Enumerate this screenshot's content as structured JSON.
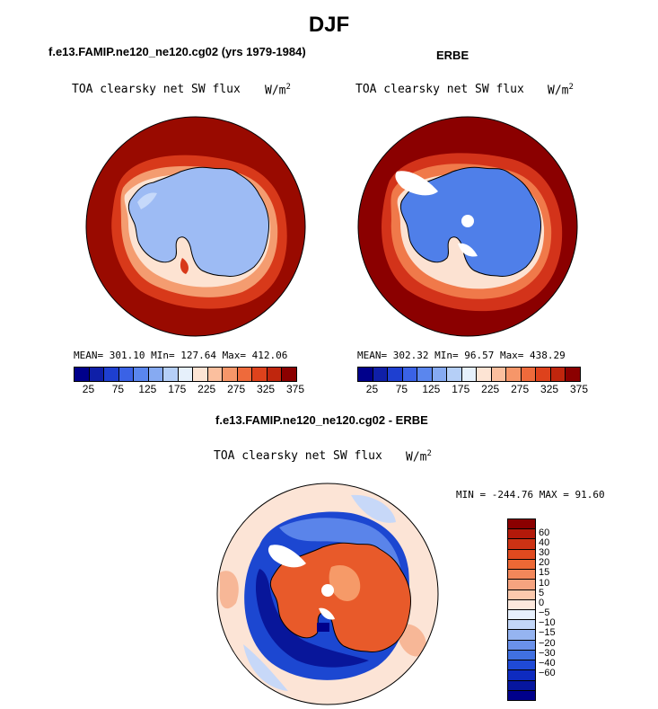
{
  "figure": {
    "title": "DJF"
  },
  "panel_model": {
    "subtitle": "f.e13.FAMIP.ne120_ne120.cg02 (yrs 1979-1984)",
    "field": "TOA clearsky net SW flux",
    "units": "W/m",
    "units_exp": "2",
    "stats": "MEAN= 301.10  MIn= 127.64  Max= 412.06"
  },
  "panel_obs": {
    "subtitle": "ERBE",
    "field": "TOA clearsky net SW flux",
    "units": "W/m",
    "units_exp": "2",
    "stats": "MEAN= 302.32  MIn=  96.57  Max= 438.29"
  },
  "panel_diff": {
    "subtitle": "f.e13.FAMIP.ne120_ne120.cg02 - ERBE",
    "field": "TOA clearsky net SW flux",
    "units": "W/m",
    "units_exp": "2",
    "stats": "MIN = -244.76 MAX =  91.60"
  },
  "colorbar_abs": {
    "colors": [
      "#00008b",
      "#0f1fa8",
      "#1e3fd0",
      "#3a62e6",
      "#5a86ee",
      "#86aaf2",
      "#b5cff7",
      "#e6f0fb",
      "#fde4d4",
      "#fbbf9e",
      "#f69669",
      "#ee6a3b",
      "#de421c",
      "#c0260d",
      "#8b0000"
    ],
    "ticks": [
      "25",
      "75",
      "125",
      "175",
      "225",
      "275",
      "325",
      "375"
    ]
  },
  "colorbar_diff": {
    "colors": [
      "#8b0000",
      "#b2190a",
      "#cc3214",
      "#e04a1f",
      "#ed6835",
      "#f3875a",
      "#f6a37f",
      "#fbc9ad",
      "#fde8dc",
      "#e7f0fd",
      "#c2d6f8",
      "#95b4f1",
      "#6a91ea",
      "#4070e1",
      "#1f4ad6",
      "#0e2bc0",
      "#06169f",
      "#00008b"
    ],
    "labels": [
      "60",
      "40",
      "30",
      "20",
      "15",
      "10",
      "5",
      "0",
      "−5",
      "−10",
      "−15",
      "−20",
      "−30",
      "−40",
      "−60"
    ]
  },
  "chart_data": {
    "type": "map",
    "projection": "south-polar-stereographic",
    "season": "DJF",
    "variable": "TOA clearsky net SW flux",
    "units": "W/m2",
    "panels": [
      {
        "name": "f.e13.FAMIP.ne120_ne120.cg02 (yrs 1979-1984)",
        "mean": 301.1,
        "min": 127.64,
        "max": 412.06,
        "levels": [
          25,
          50,
          75,
          100,
          125,
          150,
          175,
          200,
          225,
          250,
          275,
          300,
          325,
          350,
          375
        ]
      },
      {
        "name": "ERBE",
        "mean": 302.32,
        "min": 96.57,
        "max": 438.29,
        "levels": [
          25,
          50,
          75,
          100,
          125,
          150,
          175,
          200,
          225,
          250,
          275,
          300,
          325,
          350,
          375
        ]
      },
      {
        "name": "f.e13.FAMIP.ne120_ne120.cg02 - ERBE",
        "min": -244.76,
        "max": 91.6,
        "levels": [
          -60,
          -40,
          -30,
          -20,
          -15,
          -10,
          -5,
          0,
          5,
          10,
          15,
          20,
          30,
          40,
          60
        ]
      }
    ]
  }
}
